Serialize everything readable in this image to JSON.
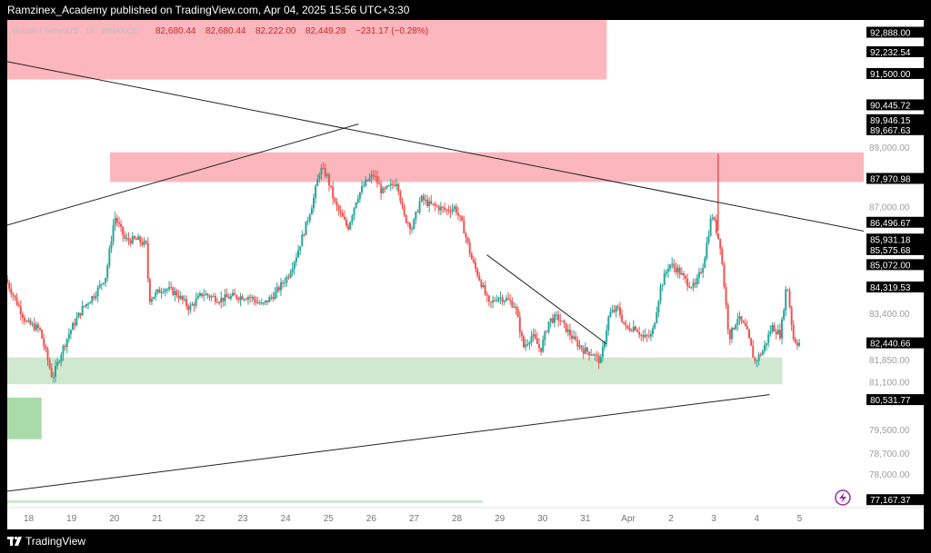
{
  "header": {
    "publisher_line": "Ramzinex_Academy published on TradingView.com, Apr 04, 2025 15:56 UTC+3:30"
  },
  "footer": {
    "brand": "TradingView",
    "logo_icon": "tradingview-logo-icon"
  },
  "legend": {
    "symbol": "Bitcoin / TetherUS · 1h · BINANCE",
    "open": "82,680.44",
    "high": "82,680.44",
    "low": "82,222.00",
    "close": "82,449.28",
    "change": "−231.17 (−0.28%)"
  },
  "colors": {
    "up": "#26a69a",
    "down": "#ef5350",
    "resistance_zone": "#fcb6bd",
    "support_zone": "#cfe8cf",
    "support_zone_dark": "#a8dba8",
    "trendline": "#222222",
    "flash_icon": "#9c27b0"
  },
  "chart_data": {
    "type": "candlestick",
    "symbol": "BTCUSDT",
    "timeframe": "1h",
    "x_ticks": [
      "18",
      "19",
      "20",
      "21",
      "22",
      "23",
      "24",
      "25",
      "26",
      "27",
      "28",
      "29",
      "30",
      "31",
      "Apr",
      "2",
      "3",
      "4",
      "5"
    ],
    "y_ticks": [
      "89,000.00",
      "87,000.00",
      "83,400.00",
      "81,850.00",
      "81,100.00",
      "79,500.00",
      "78,700.00",
      "78,000.00"
    ],
    "ylim": [
      76900,
      93300
    ],
    "price_labels": [
      {
        "value": 92888.0,
        "text": "92,888.00"
      },
      {
        "value": 92232.54,
        "text": "92,232.54"
      },
      {
        "value": 91500.0,
        "text": "91,500.00"
      },
      {
        "value": 90445.72,
        "text": "90,445.72"
      },
      {
        "value": 89946.15,
        "text": "89,946.15"
      },
      {
        "value": 89667.63,
        "text": "89,667.63"
      },
      {
        "value": 87970.98,
        "text": "87,970.98"
      },
      {
        "value": 86496.67,
        "text": "86,496.67"
      },
      {
        "value": 85931.18,
        "text": "85,931.18"
      },
      {
        "value": 85575.68,
        "text": "85,575.68"
      },
      {
        "value": 85072.0,
        "text": "85,072.00"
      },
      {
        "value": 84319.53,
        "text": "84,319.53"
      },
      {
        "value": 82440.66,
        "text": "82,440.66"
      },
      {
        "value": 80531.77,
        "text": "80,531.77"
      },
      {
        "value": 77167.37,
        "text": "77,167.37"
      }
    ],
    "zones": [
      {
        "kind": "resistance",
        "x_from": 17.5,
        "x_to": 31.5,
        "y_from": 91300,
        "y_to": 93300
      },
      {
        "kind": "resistance",
        "x_from": 19.9,
        "x_to": 37.5,
        "y_from": 87850,
        "y_to": 88850
      },
      {
        "kind": "support",
        "x_from": 17.5,
        "x_to": 35.6,
        "y_from": 81050,
        "y_to": 81950
      },
      {
        "kind": "support_dark",
        "x_from": 17.5,
        "x_to": 18.3,
        "y_from": 79200,
        "y_to": 80600
      },
      {
        "kind": "support",
        "x_from": 17.5,
        "x_to": 28.6,
        "y_from": 77050,
        "y_to": 77150
      }
    ],
    "trendlines": [
      {
        "x1": 17.5,
        "y1": 91900,
        "x2": 37.5,
        "y2": 86200
      },
      {
        "x1": 17.5,
        "y1": 86400,
        "x2": 25.7,
        "y2": 89800
      },
      {
        "x1": 17.5,
        "y1": 77450,
        "x2": 35.3,
        "y2": 80700
      },
      {
        "x1": 28.7,
        "y1": 85400,
        "x2": 31.5,
        "y2": 82400
      }
    ],
    "ohlc_path": [
      [
        17.5,
        84600
      ],
      [
        18.0,
        83100
      ],
      [
        18.3,
        82900
      ],
      [
        18.6,
        81250
      ],
      [
        18.8,
        82100
      ],
      [
        19.0,
        82800
      ],
      [
        19.3,
        83600
      ],
      [
        19.6,
        84100
      ],
      [
        19.85,
        84700
      ],
      [
        20.05,
        86700
      ],
      [
        20.3,
        85900
      ],
      [
        20.6,
        85900
      ],
      [
        20.8,
        85700
      ],
      [
        20.85,
        83900
      ],
      [
        21.2,
        84300
      ],
      [
        21.5,
        84100
      ],
      [
        21.8,
        83600
      ],
      [
        22.1,
        84100
      ],
      [
        22.5,
        83900
      ],
      [
        22.8,
        84000
      ],
      [
        23.2,
        84000
      ],
      [
        23.5,
        83700
      ],
      [
        23.8,
        84100
      ],
      [
        24.1,
        84700
      ],
      [
        24.3,
        85400
      ],
      [
        24.5,
        86300
      ],
      [
        24.7,
        87300
      ],
      [
        24.85,
        88300
      ],
      [
        25.0,
        88100
      ],
      [
        25.2,
        87100
      ],
      [
        25.5,
        86300
      ],
      [
        25.7,
        87300
      ],
      [
        25.9,
        87800
      ],
      [
        26.1,
        88100
      ],
      [
        26.3,
        87500
      ],
      [
        26.5,
        87700
      ],
      [
        26.65,
        87900
      ],
      [
        26.8,
        86700
      ],
      [
        27.0,
        86300
      ],
      [
        27.2,
        87300
      ],
      [
        27.4,
        87100
      ],
      [
        27.6,
        87000
      ],
      [
        27.8,
        86900
      ],
      [
        28.0,
        87000
      ],
      [
        28.2,
        86300
      ],
      [
        28.4,
        85200
      ],
      [
        28.6,
        84500
      ],
      [
        28.8,
        83700
      ],
      [
        29.0,
        84000
      ],
      [
        29.2,
        83900
      ],
      [
        29.4,
        83700
      ],
      [
        29.6,
        82300
      ],
      [
        29.8,
        82700
      ],
      [
        30.0,
        82200
      ],
      [
        30.2,
        83200
      ],
      [
        30.4,
        83300
      ],
      [
        30.6,
        82900
      ],
      [
        30.8,
        82500
      ],
      [
        31.0,
        82200
      ],
      [
        31.2,
        82100
      ],
      [
        31.4,
        81800
      ],
      [
        31.6,
        83400
      ],
      [
        31.8,
        83600
      ],
      [
        32.0,
        82900
      ],
      [
        32.2,
        83000
      ],
      [
        32.4,
        82600
      ],
      [
        32.6,
        82700
      ],
      [
        32.8,
        84300
      ],
      [
        33.0,
        85100
      ],
      [
        33.2,
        84900
      ],
      [
        33.4,
        84500
      ],
      [
        33.6,
        84300
      ],
      [
        33.8,
        85100
      ],
      [
        34.0,
        86800
      ],
      [
        34.2,
        85700
      ],
      [
        34.4,
        82600
      ],
      [
        34.6,
        83300
      ],
      [
        34.8,
        82900
      ],
      [
        35.0,
        81800
      ],
      [
        35.2,
        82200
      ],
      [
        35.4,
        83000
      ],
      [
        35.6,
        82700
      ],
      [
        35.75,
        84500
      ],
      [
        35.9,
        82600
      ],
      [
        36.0,
        82440
      ]
    ]
  }
}
